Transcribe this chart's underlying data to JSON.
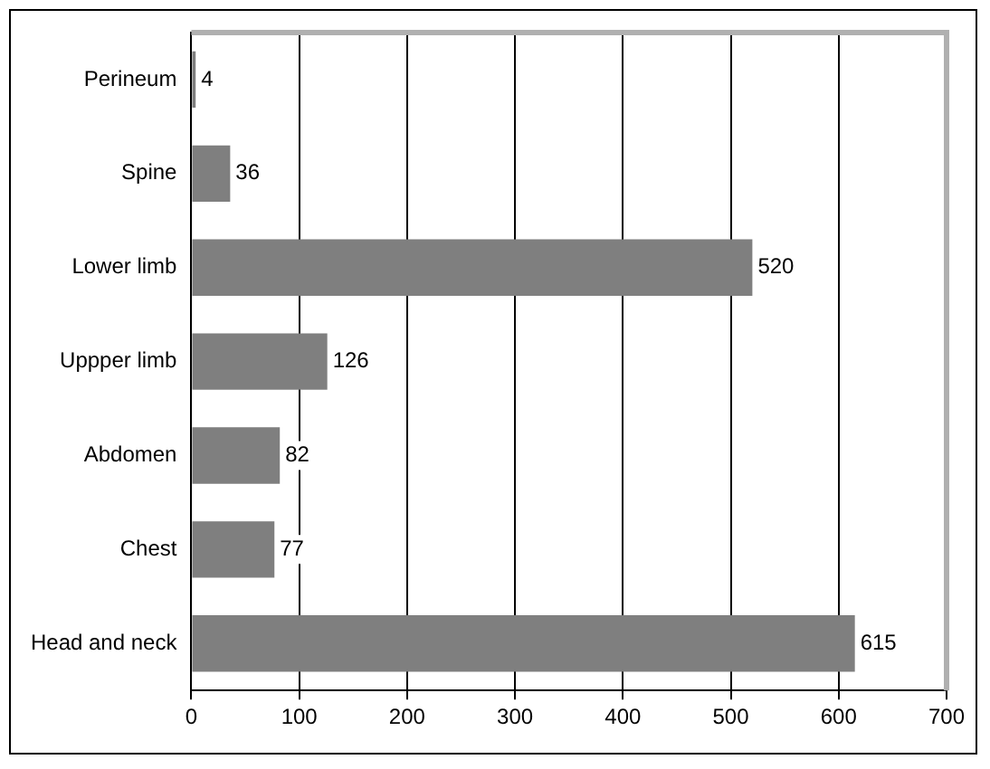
{
  "chart_data": {
    "type": "bar",
    "orientation": "horizontal",
    "categories": [
      "Perineum",
      "Spine",
      "Lower limb",
      "Uppper limb",
      "Abdomen",
      "Chest",
      "Head and neck"
    ],
    "values": [
      4,
      36,
      520,
      126,
      82,
      77,
      615
    ],
    "color": "#7f7f7f",
    "xlim": [
      0,
      700
    ],
    "xticks": [
      0,
      100,
      200,
      300,
      400,
      500,
      600,
      700
    ],
    "grid": "x",
    "data_labels": true,
    "legend": false
  }
}
